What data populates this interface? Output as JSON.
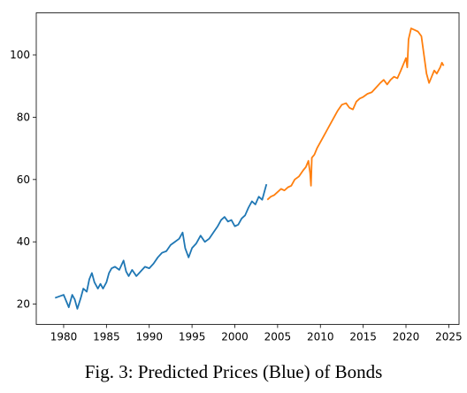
{
  "caption": "Fig. 3: Predicted Prices (Blue) of Bonds",
  "chart_data": {
    "type": "line",
    "title": "",
    "xlabel": "",
    "ylabel": "",
    "xlim": [
      1976.8,
      2026.2
    ],
    "ylim": [
      13.5,
      113.5
    ],
    "x_ticks": [
      1980,
      1985,
      1990,
      1995,
      2000,
      2005,
      2010,
      2015,
      2020,
      2025
    ],
    "y_ticks": [
      20,
      40,
      60,
      80,
      100
    ],
    "grid": false,
    "legend": "none",
    "series": [
      {
        "color": "#1f77b4",
        "x": [
          1979.0,
          1979.5,
          1980.0,
          1980.3,
          1980.6,
          1981.0,
          1981.3,
          1981.6,
          1982.0,
          1982.3,
          1982.7,
          1983.0,
          1983.3,
          1983.6,
          1984.0,
          1984.3,
          1984.6,
          1985.0,
          1985.3,
          1985.6,
          1986.0,
          1986.5,
          1987.0,
          1987.3,
          1987.6,
          1988.0,
          1988.5,
          1989.0,
          1989.5,
          1990.0,
          1990.5,
          1991.0,
          1991.5,
          1992.0,
          1992.5,
          1993.0,
          1993.5,
          1993.9,
          1994.2,
          1994.6,
          1995.0,
          1995.5,
          1996.0,
          1996.5,
          1997.0,
          1997.5,
          1998.0,
          1998.4,
          1998.8,
          1999.2,
          1999.6,
          2000.0,
          2000.4,
          2000.8,
          2001.2,
          2001.6,
          2002.0,
          2002.4,
          2002.8,
          2003.2,
          2003.5,
          2003.7
        ],
        "values": [
          22.0,
          22.5,
          23.0,
          21.0,
          19.0,
          23.0,
          21.5,
          18.5,
          22.0,
          25.0,
          24.0,
          28.0,
          30.0,
          27.0,
          25.0,
          26.5,
          25.0,
          27.0,
          30.0,
          31.5,
          32.0,
          31.0,
          34.0,
          30.5,
          29.0,
          31.0,
          29.0,
          30.5,
          32.0,
          31.5,
          33.0,
          35.0,
          36.5,
          37.0,
          39.0,
          40.0,
          41.0,
          43.0,
          38.0,
          35.0,
          38.0,
          39.5,
          42.0,
          40.0,
          41.0,
          43.0,
          45.0,
          47.0,
          48.0,
          46.5,
          47.0,
          45.0,
          45.5,
          47.5,
          48.5,
          51.0,
          53.0,
          52.0,
          54.5,
          53.5,
          56.5,
          58.5
        ]
      },
      {
        "color": "#ff7f0e",
        "x": [
          2003.8,
          2004.2,
          2004.6,
          2005.0,
          2005.4,
          2005.8,
          2006.2,
          2006.6,
          2007.0,
          2007.5,
          2008.0,
          2008.3,
          2008.6,
          2008.8,
          2008.9,
          2009.0,
          2009.3,
          2009.6,
          2010.0,
          2010.4,
          2010.8,
          2011.2,
          2011.6,
          2012.0,
          2012.5,
          2013.0,
          2013.4,
          2013.8,
          2014.2,
          2014.6,
          2015.0,
          2015.5,
          2016.0,
          2016.5,
          2017.0,
          2017.4,
          2017.8,
          2018.2,
          2018.6,
          2019.0,
          2019.4,
          2019.7,
          2020.0,
          2020.15,
          2020.3,
          2020.6,
          2021.0,
          2021.4,
          2021.8,
          2022.1,
          2022.4,
          2022.7,
          2023.0,
          2023.3,
          2023.6,
          2024.0,
          2024.2,
          2024.4
        ],
        "values": [
          53.5,
          54.5,
          55.0,
          56.0,
          57.0,
          56.5,
          57.5,
          58.0,
          60.0,
          61.0,
          63.0,
          64.0,
          66.0,
          62.0,
          58.0,
          67.0,
          68.0,
          70.0,
          72.0,
          74.0,
          76.0,
          78.0,
          80.0,
          82.0,
          84.0,
          84.5,
          83.0,
          82.5,
          85.0,
          86.0,
          86.5,
          87.5,
          88.0,
          89.5,
          91.0,
          92.0,
          90.5,
          92.0,
          93.0,
          92.5,
          95.0,
          97.0,
          99.0,
          96.0,
          105.0,
          108.5,
          108.0,
          107.5,
          106.0,
          100.0,
          94.0,
          91.0,
          93.0,
          95.0,
          94.0,
          96.0,
          97.5,
          96.5
        ]
      }
    ]
  }
}
